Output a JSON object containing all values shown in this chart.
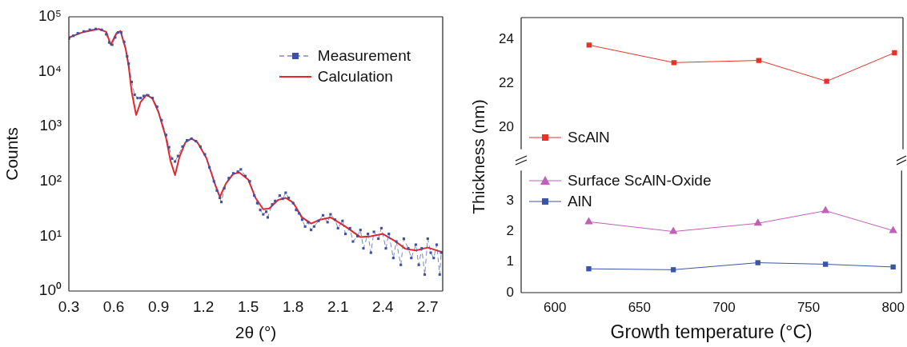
{
  "chart_data": [
    {
      "type": "line",
      "xlabel": "2θ (°)",
      "ylabel": "Counts",
      "log": "y",
      "legend": "top right",
      "xlim": [
        0.3,
        2.8
      ],
      "xticks": [
        0.3,
        0.6,
        0.9,
        1.2,
        1.5,
        1.8,
        2.1,
        2.4,
        2.7
      ],
      "ylim": [
        1,
        100000
      ],
      "yticks": [
        {
          "value": 1,
          "label": "10⁰"
        },
        {
          "value": 10,
          "label": "10¹"
        },
        {
          "value": 100,
          "label": "10²"
        },
        {
          "value": 1000,
          "label": "10³"
        },
        {
          "value": 10000,
          "label": "10⁴"
        },
        {
          "value": 100000,
          "label": "10⁵"
        }
      ],
      "grid": false,
      "series": [
        {
          "name": "Measurement",
          "color": "#3f51a5",
          "marker": "square",
          "line_style": "dashed",
          "x": [
            0.3,
            0.33,
            0.36,
            0.4,
            0.44,
            0.48,
            0.52,
            0.55,
            0.57,
            0.59,
            0.61,
            0.63,
            0.65,
            0.67,
            0.69,
            0.7,
            0.72,
            0.74,
            0.76,
            0.78,
            0.8,
            0.83,
            0.86,
            0.89,
            0.92,
            0.95,
            0.97,
            0.99,
            1.01,
            1.03,
            1.06,
            1.09,
            1.12,
            1.15,
            1.18,
            1.21,
            1.24,
            1.27,
            1.29,
            1.31,
            1.32,
            1.34,
            1.37,
            1.4,
            1.43,
            1.45,
            1.48,
            1.51,
            1.54,
            1.56,
            1.58,
            1.6,
            1.62,
            1.63,
            1.66,
            1.68,
            1.71,
            1.73,
            1.75,
            1.77,
            1.8,
            1.82,
            1.84,
            1.86,
            1.88,
            1.9,
            1.92,
            1.94,
            1.97,
            2.0,
            2.03,
            2.05,
            2.08,
            2.1,
            2.13,
            2.15,
            2.18,
            2.2,
            2.23,
            2.25,
            2.27,
            2.3,
            2.32,
            2.34,
            2.37,
            2.39,
            2.42,
            2.44,
            2.47,
            2.49,
            2.52,
            2.54,
            2.57,
            2.59,
            2.62,
            2.64,
            2.66,
            2.68,
            2.7,
            2.72,
            2.74,
            2.76,
            2.78,
            2.79
          ],
          "values": [
            40000,
            45000,
            50000,
            54000,
            58000,
            60000,
            58000,
            48000,
            34000,
            31000,
            42000,
            52000,
            52000,
            35000,
            19000,
            14000,
            6500,
            3800,
            3300,
            3300,
            3600,
            3700,
            3300,
            2300,
            1300,
            700,
            420,
            260,
            230,
            290,
            430,
            560,
            600,
            540,
            430,
            310,
            180,
            100,
            68,
            50,
            42,
            75,
            115,
            140,
            150,
            165,
            125,
            100,
            55,
            40,
            30,
            25,
            28,
            22,
            38,
            44,
            55,
            48,
            62,
            50,
            40,
            30,
            26,
            20,
            15,
            18,
            13,
            15,
            19,
            24,
            18,
            25,
            20,
            14,
            19,
            11,
            14,
            8,
            10,
            13,
            6,
            11,
            5,
            12,
            9,
            14,
            6,
            11,
            4,
            8,
            3,
            9,
            6,
            4,
            7,
            3,
            6,
            2,
            9,
            5,
            4,
            7,
            2,
            5
          ]
        },
        {
          "name": "Calculation",
          "color": "#e8262a",
          "marker": "none",
          "line_style": "solid",
          "x": [
            0.3,
            0.4,
            0.5,
            0.55,
            0.58,
            0.62,
            0.645,
            0.68,
            0.7,
            0.72,
            0.75,
            0.78,
            0.82,
            0.86,
            0.9,
            0.95,
            0.98,
            1.01,
            1.04,
            1.08,
            1.12,
            1.16,
            1.22,
            1.28,
            1.31,
            1.35,
            1.4,
            1.44,
            1.5,
            1.55,
            1.6,
            1.64,
            1.7,
            1.75,
            1.8,
            1.86,
            1.92,
            1.98,
            2.05,
            2.15,
            2.25,
            2.32,
            2.4,
            2.48,
            2.55,
            2.62,
            2.7,
            2.8
          ],
          "values": [
            42000,
            53000,
            60000,
            53000,
            31000,
            51000,
            55000,
            26000,
            12600,
            4300,
            1620,
            2800,
            3800,
            3200,
            1800,
            620,
            235,
            130,
            280,
            515,
            600,
            515,
            265,
            85,
            52,
            91,
            137,
            145,
            107,
            49,
            31,
            32,
            46,
            50,
            41,
            22,
            17,
            20,
            22,
            15,
            9.6,
            10,
            11,
            8.2,
            5.9,
            5.5,
            6.2,
            5.1
          ]
        }
      ]
    },
    {
      "type": "line",
      "tick_labels": "y",
      "legend": "bottom left",
      "xlim": [
        580,
        805
      ],
      "xticks": [
        600,
        650,
        700,
        750,
        800
      ],
      "ylim": [
        19,
        25
      ],
      "yticks": [
        20,
        22,
        24
      ],
      "grid": false,
      "series": [
        {
          "name": "ScAlN",
          "color": "#e5332a",
          "marker": "square",
          "x": [
            620,
            670,
            720,
            760,
            800
          ],
          "values": [
            23.75,
            22.95,
            23.05,
            22.1,
            23.4
          ]
        }
      ]
    },
    {
      "type": "line",
      "xlabel": "Growth temperature (°C)",
      "ylabel": "Thickness (nm)",
      "legend": "top left",
      "xlim": [
        580,
        805
      ],
      "xticks": [
        600,
        650,
        700,
        750,
        800
      ],
      "ylim": [
        0,
        4
      ],
      "yticks": [
        0,
        1,
        2,
        3
      ],
      "grid": false,
      "series": [
        {
          "name": "Surface ScAlN-Oxide",
          "color": "#c060b8",
          "marker": "triangle",
          "x": [
            620,
            670,
            720,
            760,
            800
          ],
          "values": [
            2.32,
            2.0,
            2.27,
            2.68,
            2.03
          ]
        },
        {
          "name": "AlN",
          "color": "#3a55a8",
          "marker": "square",
          "x": [
            620,
            670,
            720,
            760,
            800
          ],
          "values": [
            0.78,
            0.75,
            0.98,
            0.93,
            0.84
          ]
        }
      ]
    }
  ]
}
